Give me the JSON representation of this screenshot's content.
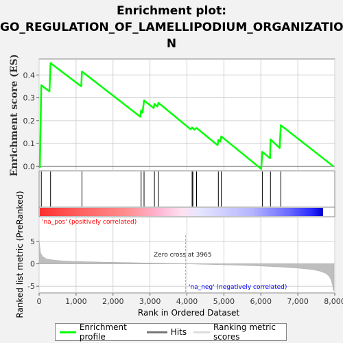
{
  "title_line1": "Enrichment plot:",
  "title_line2": "GO_REGULATION_OF_LAMELLIPODIUM_ORGANIZATIO",
  "title_line3": "N",
  "colors": {
    "enrichment": "#00ff00",
    "hits": "#000000",
    "metric_fill": "#bebebe",
    "pos_label": "#ff0000",
    "neg_label": "#0000ff"
  },
  "chart_data": [
    {
      "type": "line",
      "name": "enrichment-profile",
      "ylabel": "Enrichment score (ES)",
      "xlim": [
        0,
        8000
      ],
      "ylim": [
        -0.02,
        0.47
      ],
      "yticks": [
        "0.0",
        "0.1",
        "0.2",
        "0.3",
        "0.4"
      ],
      "x": [
        0,
        20,
        60,
        280,
        310,
        1140,
        1160,
        2740,
        2760,
        2800,
        2840,
        3100,
        3120,
        3200,
        3230,
        4100,
        4140,
        4200,
        4260,
        4830,
        4850,
        4900,
        4930,
        6010,
        6040,
        6250,
        6260,
        6510,
        6540,
        7960
      ],
      "y": [
        0.0,
        -0.005,
        0.355,
        0.328,
        0.452,
        0.35,
        0.415,
        0.217,
        0.245,
        0.235,
        0.288,
        0.255,
        0.273,
        0.262,
        0.278,
        0.162,
        0.17,
        0.16,
        0.168,
        0.092,
        0.115,
        0.108,
        0.131,
        -0.012,
        0.063,
        0.035,
        0.118,
        0.08,
        0.18,
        0.0
      ]
    },
    {
      "type": "hits",
      "name": "hits",
      "positions": [
        60,
        310,
        1160,
        2760,
        2840,
        3120,
        3230,
        4140,
        4160,
        4260,
        4850,
        4930,
        6040,
        6260,
        6540
      ]
    },
    {
      "type": "area",
      "name": "ranked-list-metric",
      "ylabel": "Ranked list metric (PreRanked)",
      "xlabel": "Rank in Ordered Dataset",
      "xlim": [
        0,
        8000
      ],
      "ylim": [
        -6.5,
        10.5
      ],
      "yticks": [
        "-5",
        "0",
        "5"
      ],
      "xticks": [
        "0",
        "1,000",
        "2,000",
        "3,000",
        "4,000",
        "5,000",
        "6,000",
        "7,000",
        "8,000"
      ],
      "x": [
        0,
        40,
        100,
        200,
        400,
        700,
        1000,
        1500,
        2000,
        2500,
        3000,
        3500,
        3965,
        4500,
        5000,
        5500,
        6000,
        6500,
        7000,
        7400,
        7600,
        7750,
        7850,
        7900,
        7940,
        7960,
        7980
      ],
      "y": [
        5.2,
        2.4,
        1.6,
        1.1,
        0.8,
        0.62,
        0.52,
        0.42,
        0.33,
        0.25,
        0.18,
        0.08,
        0.0,
        -0.12,
        -0.22,
        -0.35,
        -0.5,
        -0.7,
        -0.95,
        -1.3,
        -1.65,
        -2.1,
        -2.8,
        -3.6,
        -4.8,
        -5.8,
        -6.1
      ],
      "zero_cross_label": "Zero cross at 3965",
      "pos_label": "'na_pos' (positively correlated)",
      "neg_label": "'na_neg' (negatively correlated)"
    }
  ],
  "legend": {
    "enrichment": "Enrichment profile",
    "hits": "Hits",
    "ranking": "Ranking metric scores"
  }
}
